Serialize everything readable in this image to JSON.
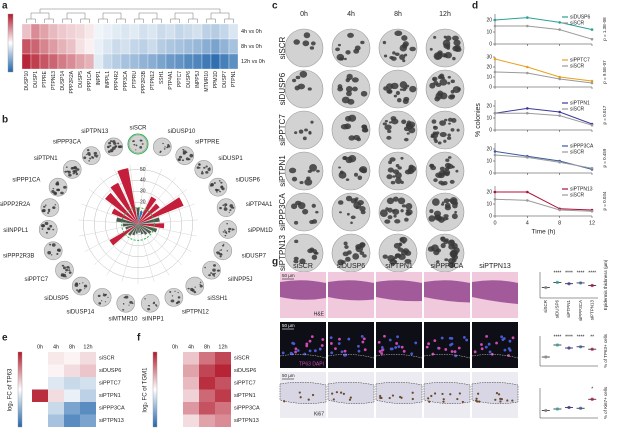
{
  "panel_labels": [
    "a",
    "b",
    "c",
    "d",
    "e",
    "f",
    "g"
  ],
  "a": {
    "rows": [
      "4h vs 0h",
      "8h vs 0h",
      "12h vs 0h"
    ],
    "genes": [
      "DUSP10",
      "DUSP1",
      "PTPRE",
      "PTPN13",
      "DUSP14",
      "PPP2R2A",
      "DUSP5",
      "PPP1CA",
      "INPP1",
      "INPPL1",
      "PPP4R2",
      "PPP3CA",
      "PTPRU",
      "PPP2R3B",
      "PTPN12",
      "SSH1",
      "PTP4A1",
      "PPTC7",
      "DUSP6",
      "INPP5J",
      "MTMR10",
      "PPM1D",
      "DUSP7",
      "PTPN1"
    ],
    "clim": [
      -3,
      3
    ],
    "values": [
      [
        0.8,
        1.5,
        1.2,
        0.9,
        0.7,
        0.6,
        0.5,
        0.3,
        -0.2,
        -0.3,
        -0.4,
        -0.5,
        -0.4,
        -0.6,
        -0.5,
        -0.7,
        -0.6,
        -0.8,
        -0.7,
        -0.6,
        -0.9,
        -1.0,
        -0.8,
        -0.5
      ],
      [
        2.2,
        2.0,
        1.6,
        1.3,
        1.0,
        0.8,
        0.4,
        0.2,
        -0.3,
        -0.5,
        -0.7,
        -0.6,
        -0.8,
        -0.9,
        -0.7,
        -1.0,
        -1.1,
        -1.2,
        -1.3,
        -1.4,
        -1.6,
        -1.8,
        -1.5,
        -1.2
      ],
      [
        2.8,
        2.5,
        2.2,
        2.0,
        1.7,
        1.5,
        1.2,
        1.0,
        -0.4,
        -0.8,
        -1.0,
        -1.2,
        -1.3,
        -1.5,
        -1.6,
        -1.8,
        -2.0,
        -2.1,
        -2.3,
        -2.4,
        -2.6,
        -2.8,
        -2.5,
        -2.2
      ]
    ]
  },
  "b": {
    "genes": [
      "siSCR",
      "siDUSP10",
      "siPTPRE",
      "siDUSP1",
      "siDUSP6",
      "siPTP4A1",
      "siPPM1D",
      "siDUSP7",
      "siINPP5J",
      "siSSH1",
      "siPTPN12",
      "siINPP1",
      "siMTMR10",
      "siDUSP14",
      "siDUSP5",
      "siPPTC7",
      "siPPP2R3B",
      "siINPPL1",
      "siPPP2R2A",
      "siPPP1CA",
      "siPTPN1",
      "siPPP3CA",
      "siPTPN13"
    ],
    "values": [
      15,
      12,
      28,
      25,
      45,
      20,
      24,
      18,
      14,
      12,
      10,
      8,
      9,
      11,
      13,
      30,
      12,
      14,
      20,
      26,
      38,
      42,
      52
    ],
    "colors": [
      "#4d5a4d",
      "#2b7bba",
      "#c41e3a",
      "#c41e3a",
      "#c41e3a",
      "#4d5a4d",
      "#c41e3a",
      "#4d5a4d",
      "#4d5a4d",
      "#4d5a4d",
      "#4d5a4d",
      "#4d5a4d",
      "#4d5a4d",
      "#4d5a4d",
      "#4d5a4d",
      "#c41e3a",
      "#4d5a4d",
      "#4d5a4d",
      "#4d5a4d",
      "#c41e3a",
      "#c41e3a",
      "#c41e3a",
      "#c41e3a"
    ],
    "rlim": [
      0,
      55
    ],
    "rticks": [
      10,
      20,
      30,
      40,
      50
    ]
  },
  "c": {
    "times": [
      "0h",
      "4h",
      "8h",
      "12h"
    ],
    "rows": [
      "siSCR",
      "siDUSP6",
      "siPPTC7",
      "siPTPN1",
      "siPPP3CA",
      "siPTPN13"
    ]
  },
  "d": {
    "y_label": "% colonies",
    "x_label": "Time (h)",
    "x": [
      0,
      4,
      8,
      12
    ],
    "xlim": [
      0,
      12
    ],
    "xticks": [
      0,
      4,
      8,
      12
    ],
    "plots": [
      {
        "ylim": [
          0,
          25
        ],
        "yticks": [
          0,
          10,
          20
        ],
        "p": "p = 1.3E-08",
        "series": [
          {
            "name": "siDUSP6",
            "color": "#2aa198",
            "values": [
              20,
              22,
              18,
              12
            ]
          },
          {
            "name": "siSCR",
            "color": "#9a9a9a",
            "values": [
              15,
              15,
              12,
              4
            ]
          }
        ]
      },
      {
        "ylim": [
          0,
          30
        ],
        "yticks": [
          0,
          10,
          20,
          30
        ],
        "p": "p = 9.5E-07",
        "series": [
          {
            "name": "siPPTC7",
            "color": "#e8a020",
            "values": [
              28,
              20,
              10,
              6
            ]
          },
          {
            "name": "siSCR",
            "color": "#9a9a9a",
            "values": [
              15,
              14,
              8,
              4
            ]
          }
        ]
      },
      {
        "ylim": [
          0,
          25
        ],
        "yticks": [
          0,
          10,
          20
        ],
        "p": "p = 0.017",
        "series": [
          {
            "name": "siPTPN1",
            "color": "#3a3a9a",
            "values": [
              14,
              18,
              15,
              5
            ]
          },
          {
            "name": "siSCR",
            "color": "#9a9a9a",
            "values": [
              14,
              14,
              12,
              4
            ]
          }
        ]
      },
      {
        "ylim": [
          0,
          25
        ],
        "yticks": [
          0,
          10,
          20
        ],
        "p": "p = 0.459",
        "series": [
          {
            "name": "siPPP3CA",
            "color": "#3a5aa0",
            "values": [
              18,
              14,
              10,
              3
            ]
          },
          {
            "name": "siSCR",
            "color": "#9a9a9a",
            "values": [
              15,
              13,
              9,
              4
            ]
          }
        ]
      },
      {
        "ylim": [
          0,
          25
        ],
        "yticks": [
          0,
          10,
          20
        ],
        "p": "p = 0.034",
        "series": [
          {
            "name": "siPTPN13",
            "color": "#b0103a",
            "values": [
              20,
              20,
              6,
              5
            ]
          },
          {
            "name": "siSCR",
            "color": "#9a9a9a",
            "values": [
              14,
              13,
              5,
              4
            ]
          }
        ]
      }
    ]
  },
  "e": {
    "y_label": "log₂ FC of TP63",
    "columns": [
      "0h",
      "4h",
      "8h",
      "12h"
    ],
    "rows": [
      "siSCR",
      "siDUSP6",
      "siPPTC7",
      "siPTPN1",
      "siPPP3CA",
      "siPTPN13"
    ],
    "clim": [
      -2,
      2
    ],
    "values": [
      [
        0,
        0.2,
        0.1,
        0.3
      ],
      [
        0,
        0.1,
        0.3,
        0.5
      ],
      [
        0,
        -0.3,
        -0.5,
        -0.4
      ],
      [
        1.8,
        0.3,
        -0.2,
        -0.6
      ],
      [
        0,
        -0.5,
        -1.2,
        -1.5
      ],
      [
        0,
        -0.8,
        -1.5,
        -1.2
      ]
    ]
  },
  "f": {
    "y_label": "log₂ FC of TGM1",
    "columns": [
      "0h",
      "4h",
      "8h",
      "12h"
    ],
    "rows": [
      "siSCR",
      "siDUSP6",
      "siPPTC7",
      "siPTPN1",
      "siPPP3CA",
      "siPTPN13"
    ],
    "clim": [
      -2,
      2
    ],
    "values": [
      [
        0,
        0.5,
        1.2,
        1.6
      ],
      [
        0,
        0.8,
        1.6,
        1.9
      ],
      [
        0,
        0.6,
        1.8,
        1.5
      ],
      [
        0,
        0.4,
        1.3,
        1.7
      ],
      [
        0,
        0.9,
        1.5,
        1.2
      ],
      [
        0,
        0.3,
        0.8,
        1.0
      ]
    ]
  },
  "g": {
    "columns": [
      "siSCR",
      "siDUSP6",
      "siPTPN1",
      "siPPP3CA",
      "siPTPN13"
    ],
    "stains": [
      "H&E",
      "TP63 DAPI",
      "Ki67"
    ],
    "scale": "50 µm",
    "colors": [
      "#888888",
      "#2aa198",
      "#3a3a9a",
      "#3a5aa0",
      "#b0103a"
    ],
    "charts": [
      {
        "y_label": "Epidermis thickness (µm)",
        "ylim": [
          0,
          100
        ],
        "values": [
          40,
          60,
          55,
          58,
          48
        ],
        "stars": [
          {
            "index": 1,
            "label": "****"
          },
          {
            "index": 2,
            "label": "****"
          },
          {
            "index": 3,
            "label": "****"
          },
          {
            "index": 4,
            "label": "****"
          }
        ]
      },
      {
        "y_label": "% of TP63+ cells",
        "ylim": [
          0,
          50
        ],
        "values": [
          15,
          35,
          30,
          32,
          28
        ],
        "stars": [
          {
            "index": 1,
            "label": "****"
          },
          {
            "index": 2,
            "label": "****"
          },
          {
            "index": 3,
            "label": "****"
          },
          {
            "index": 4,
            "label": "**"
          }
        ]
      },
      {
        "y_label": "% of Ki67+ cells",
        "ylim": [
          0,
          40
        ],
        "values": [
          10,
          12,
          14,
          13,
          25
        ],
        "stars": [
          {
            "index": 4,
            "label": "*"
          }
        ]
      }
    ]
  }
}
